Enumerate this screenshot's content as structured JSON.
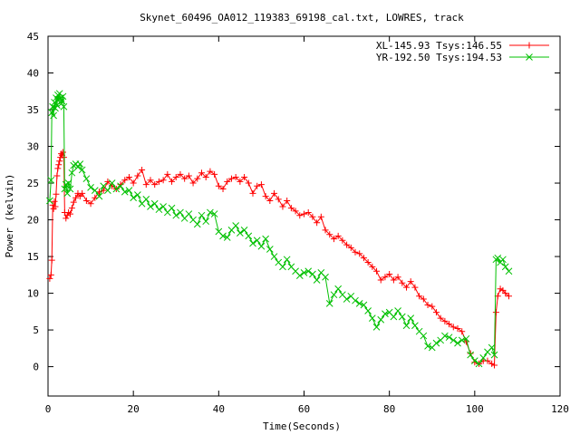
{
  "chart_data": {
    "type": "line",
    "title": "Skynet_60496_OA012_119383_69198_cal.txt, LOWRES, track",
    "xlabel": "Time(Seconds)",
    "ylabel": "Power (kelvin)",
    "xlim": [
      0,
      120
    ],
    "ylim": [
      -4,
      45
    ],
    "xticks": [
      0,
      20,
      40,
      60,
      80,
      100,
      120
    ],
    "yticks": [
      0,
      5,
      10,
      15,
      20,
      25,
      30,
      35,
      40,
      45
    ],
    "grid": false,
    "legend_position": "top-right",
    "series": [
      {
        "name": "XL-145.93 Tsys:146.55",
        "color": "#ff0000",
        "marker": "plus",
        "points": [
          [
            0.4,
            12.0
          ],
          [
            0.7,
            12.5
          ],
          [
            0.9,
            14.5
          ],
          [
            1.1,
            22.0
          ],
          [
            1.3,
            21.5
          ],
          [
            1.5,
            22.5
          ],
          [
            1.7,
            21.8
          ],
          [
            1.9,
            23.5
          ],
          [
            2.1,
            26.0
          ],
          [
            2.3,
            27.0
          ],
          [
            2.5,
            27.5
          ],
          [
            2.7,
            28.0
          ],
          [
            2.9,
            28.5
          ],
          [
            3.1,
            29.0
          ],
          [
            3.3,
            28.8
          ],
          [
            3.5,
            29.2
          ],
          [
            3.7,
            28.5
          ],
          [
            3.9,
            21.0
          ],
          [
            4.2,
            20.2
          ],
          [
            4.5,
            20.6
          ],
          [
            4.8,
            21.0
          ],
          [
            5.2,
            20.8
          ],
          [
            5.6,
            21.6
          ],
          [
            6.0,
            22.4
          ],
          [
            6.5,
            23.0
          ],
          [
            7.0,
            23.6
          ],
          [
            7.5,
            23.2
          ],
          [
            8.0,
            23.6
          ],
          [
            9.0,
            22.6
          ],
          [
            10.0,
            22.2
          ],
          [
            11.0,
            23.0
          ],
          [
            12.0,
            23.8
          ],
          [
            13.0,
            24.0
          ],
          [
            14.0,
            25.2
          ],
          [
            15.0,
            24.6
          ],
          [
            16.0,
            24.2
          ],
          [
            17.0,
            24.8
          ],
          [
            18.0,
            25.4
          ],
          [
            19.0,
            25.8
          ],
          [
            20.0,
            25.0
          ],
          [
            21.0,
            26.0
          ],
          [
            22.0,
            26.8
          ],
          [
            23.0,
            24.8
          ],
          [
            24.0,
            25.4
          ],
          [
            25.0,
            24.8
          ],
          [
            26.0,
            25.2
          ],
          [
            27.0,
            25.4
          ],
          [
            28.0,
            26.2
          ],
          [
            29.0,
            25.2
          ],
          [
            30.0,
            25.8
          ],
          [
            31.0,
            26.2
          ],
          [
            32.0,
            25.6
          ],
          [
            33.0,
            26.0
          ],
          [
            34.0,
            25.0
          ],
          [
            35.0,
            25.6
          ],
          [
            36.0,
            26.4
          ],
          [
            37.0,
            25.8
          ],
          [
            38.0,
            26.6
          ],
          [
            39.0,
            26.2
          ],
          [
            40.0,
            24.6
          ],
          [
            41.0,
            24.2
          ],
          [
            42.0,
            25.2
          ],
          [
            43.0,
            25.6
          ],
          [
            44.0,
            25.8
          ],
          [
            45.0,
            25.2
          ],
          [
            46.0,
            25.8
          ],
          [
            47.0,
            25.0
          ],
          [
            48.0,
            23.6
          ],
          [
            49.0,
            24.6
          ],
          [
            50.0,
            24.8
          ],
          [
            51.0,
            23.2
          ],
          [
            52.0,
            22.6
          ],
          [
            53.0,
            23.6
          ],
          [
            54.0,
            22.8
          ],
          [
            55.0,
            21.8
          ],
          [
            56.0,
            22.6
          ],
          [
            57.0,
            21.6
          ],
          [
            58.0,
            21.2
          ],
          [
            59.0,
            20.6
          ],
          [
            60.0,
            20.8
          ],
          [
            61.0,
            21.0
          ],
          [
            62.0,
            20.4
          ],
          [
            63.0,
            19.6
          ],
          [
            64.0,
            20.4
          ],
          [
            65.0,
            18.6
          ],
          [
            66.0,
            18.0
          ],
          [
            67.0,
            17.4
          ],
          [
            68.0,
            17.8
          ],
          [
            69.0,
            17.2
          ],
          [
            70.0,
            16.6
          ],
          [
            71.0,
            16.2
          ],
          [
            72.0,
            15.6
          ],
          [
            73.0,
            15.4
          ],
          [
            74.0,
            14.8
          ],
          [
            75.0,
            14.2
          ],
          [
            76.0,
            13.6
          ],
          [
            77.0,
            13.0
          ],
          [
            78.0,
            11.8
          ],
          [
            79.0,
            12.2
          ],
          [
            80.0,
            12.6
          ],
          [
            81.0,
            11.8
          ],
          [
            82.0,
            12.2
          ],
          [
            83.0,
            11.4
          ],
          [
            84.0,
            10.8
          ],
          [
            85.0,
            11.6
          ],
          [
            86.0,
            10.8
          ],
          [
            87.0,
            9.6
          ],
          [
            88.0,
            9.2
          ],
          [
            89.0,
            8.4
          ],
          [
            90.0,
            8.2
          ],
          [
            91.0,
            7.4
          ],
          [
            92.0,
            6.6
          ],
          [
            93.0,
            6.2
          ],
          [
            94.0,
            5.8
          ],
          [
            95.0,
            5.4
          ],
          [
            96.0,
            5.2
          ],
          [
            97.0,
            4.8
          ],
          [
            98.0,
            3.4
          ],
          [
            99.0,
            1.8
          ],
          [
            100.0,
            0.6
          ],
          [
            101.0,
            0.4
          ],
          [
            102.0,
            0.8
          ],
          [
            103.0,
            0.8
          ],
          [
            104.0,
            0.4
          ],
          [
            104.6,
            0.2
          ],
          [
            105.0,
            7.4
          ],
          [
            105.4,
            9.6
          ],
          [
            106.0,
            10.6
          ],
          [
            106.6,
            10.4
          ],
          [
            107.2,
            10.0
          ],
          [
            108.0,
            9.6
          ]
        ]
      },
      {
        "name": "YR-192.50 Tsys:194.53",
        "color": "#00c000",
        "marker": "cross",
        "points": [
          [
            0.4,
            22.6
          ],
          [
            0.7,
            25.4
          ],
          [
            0.9,
            34.6
          ],
          [
            1.1,
            35.4
          ],
          [
            1.3,
            34.2
          ],
          [
            1.5,
            36.0
          ],
          [
            1.7,
            35.2
          ],
          [
            1.9,
            36.6
          ],
          [
            2.1,
            35.6
          ],
          [
            2.3,
            37.0
          ],
          [
            2.5,
            36.4
          ],
          [
            2.7,
            37.2
          ],
          [
            2.9,
            36.6
          ],
          [
            3.1,
            35.8
          ],
          [
            3.3,
            36.2
          ],
          [
            3.5,
            36.8
          ],
          [
            3.7,
            35.4
          ],
          [
            3.9,
            24.2
          ],
          [
            4.2,
            24.8
          ],
          [
            4.5,
            23.6
          ],
          [
            4.8,
            25.0
          ],
          [
            5.2,
            24.2
          ],
          [
            5.6,
            26.4
          ],
          [
            6.0,
            27.4
          ],
          [
            6.5,
            27.6
          ],
          [
            7.0,
            27.2
          ],
          [
            7.5,
            27.6
          ],
          [
            8.0,
            26.8
          ],
          [
            9.0,
            25.6
          ],
          [
            10.0,
            24.4
          ],
          [
            11.0,
            24.0
          ],
          [
            12.0,
            23.2
          ],
          [
            13.0,
            24.6
          ],
          [
            14.0,
            24.0
          ],
          [
            15.0,
            25.0
          ],
          [
            16.0,
            24.2
          ],
          [
            17.0,
            24.6
          ],
          [
            18.0,
            23.8
          ],
          [
            19.0,
            24.0
          ],
          [
            20.0,
            23.0
          ],
          [
            21.0,
            23.4
          ],
          [
            22.0,
            22.2
          ],
          [
            23.0,
            22.8
          ],
          [
            24.0,
            21.8
          ],
          [
            25.0,
            22.2
          ],
          [
            26.0,
            21.4
          ],
          [
            27.0,
            21.8
          ],
          [
            28.0,
            21.0
          ],
          [
            29.0,
            21.6
          ],
          [
            30.0,
            20.6
          ],
          [
            31.0,
            21.0
          ],
          [
            32.0,
            20.2
          ],
          [
            33.0,
            20.8
          ],
          [
            34.0,
            20.0
          ],
          [
            35.0,
            19.4
          ],
          [
            36.0,
            20.6
          ],
          [
            37.0,
            19.8
          ],
          [
            38.0,
            21.0
          ],
          [
            39.0,
            20.8
          ],
          [
            40.0,
            18.4
          ],
          [
            41.0,
            17.8
          ],
          [
            42.0,
            17.6
          ],
          [
            43.0,
            18.6
          ],
          [
            44.0,
            19.2
          ],
          [
            45.0,
            18.2
          ],
          [
            46.0,
            18.6
          ],
          [
            47.0,
            17.8
          ],
          [
            48.0,
            16.8
          ],
          [
            49.0,
            17.2
          ],
          [
            50.0,
            16.4
          ],
          [
            51.0,
            17.4
          ],
          [
            52.0,
            16.0
          ],
          [
            53.0,
            15.0
          ],
          [
            54.0,
            14.2
          ],
          [
            55.0,
            13.6
          ],
          [
            56.0,
            14.6
          ],
          [
            57.0,
            13.6
          ],
          [
            58.0,
            13.0
          ],
          [
            59.0,
            12.4
          ],
          [
            60.0,
            12.8
          ],
          [
            61.0,
            13.0
          ],
          [
            62.0,
            12.6
          ],
          [
            63.0,
            11.8
          ],
          [
            64.0,
            12.8
          ],
          [
            65.0,
            12.2
          ],
          [
            66.0,
            8.6
          ],
          [
            67.0,
            9.8
          ],
          [
            68.0,
            10.6
          ],
          [
            69.0,
            9.8
          ],
          [
            70.0,
            9.2
          ],
          [
            71.0,
            9.6
          ],
          [
            72.0,
            9.0
          ],
          [
            73.0,
            8.6
          ],
          [
            74.0,
            8.4
          ],
          [
            75.0,
            7.6
          ],
          [
            76.0,
            6.6
          ],
          [
            77.0,
            5.4
          ],
          [
            78.0,
            6.4
          ],
          [
            79.0,
            7.2
          ],
          [
            80.0,
            7.4
          ],
          [
            81.0,
            6.8
          ],
          [
            82.0,
            7.6
          ],
          [
            83.0,
            6.8
          ],
          [
            84.0,
            5.6
          ],
          [
            85.0,
            6.6
          ],
          [
            86.0,
            5.6
          ],
          [
            87.0,
            4.8
          ],
          [
            88.0,
            4.2
          ],
          [
            89.0,
            2.8
          ],
          [
            90.0,
            2.6
          ],
          [
            91.0,
            3.2
          ],
          [
            92.0,
            3.6
          ],
          [
            93.0,
            4.2
          ],
          [
            94.0,
            4.0
          ],
          [
            95.0,
            3.6
          ],
          [
            96.0,
            3.2
          ],
          [
            97.0,
            3.6
          ],
          [
            98.0,
            3.8
          ],
          [
            99.0,
            1.6
          ],
          [
            100.0,
            0.8
          ],
          [
            101.0,
            0.4
          ],
          [
            102.0,
            1.2
          ],
          [
            103.0,
            2.0
          ],
          [
            104.0,
            2.6
          ],
          [
            104.6,
            1.6
          ],
          [
            105.0,
            14.6
          ],
          [
            105.4,
            14.8
          ],
          [
            106.0,
            14.2
          ],
          [
            106.6,
            14.6
          ],
          [
            107.2,
            13.6
          ],
          [
            108.0,
            13.0
          ]
        ]
      }
    ]
  }
}
